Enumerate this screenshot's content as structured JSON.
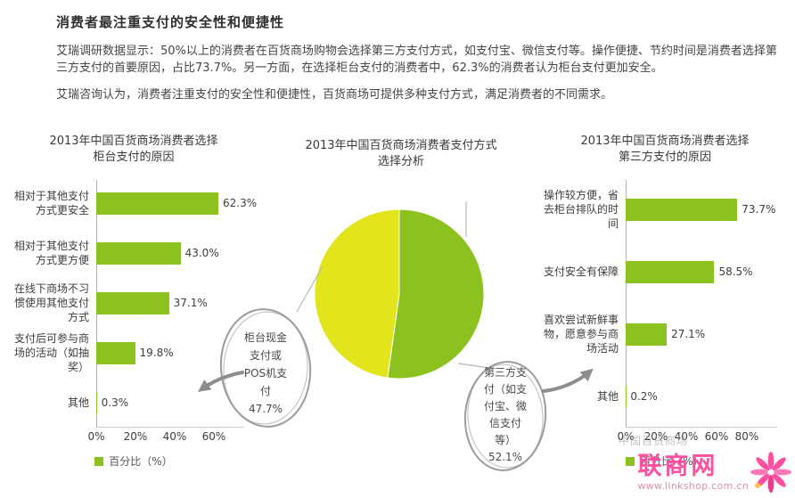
{
  "header": {
    "title": "消费者最注重支付的安全性和便捷性",
    "paragraph1": "艾瑞调研数据显示：50%以上的消费者在百货商场购物会选择第三方支付方式，如支付宝、微信支付等。操作便捷、节约时间是消费者选择第三方支付的首要原因，占比73.7%。另一方面，在选择柜台支付的消费者中，62.3%的消费者认为柜台支付更加安全。",
    "paragraph2": "艾瑞咨询认为，消费者注重支付的安全性和便捷性，百货商场可提供多种支付方式，满足消费者的不同需求。"
  },
  "colors": {
    "bar_green": "#8cc21f",
    "pie_green": "#8cc21f",
    "pie_yellow": "#e2e51c",
    "annotation_gray": "#9c9c9c",
    "watermark_pink": "#ff4fa0"
  },
  "chart_data": [
    {
      "id": "counter_payment_reasons",
      "type": "bar",
      "orientation": "horizontal",
      "title": "2013年中国百货商场消费者选择柜台支付的原因",
      "title_lines": [
        "2013年中国百货商场消费者选择",
        "柜台支付的原因"
      ],
      "categories": [
        "相对于其他支付方式更安全",
        "相对于其他支付方式更方便",
        "在线下商场不习惯使用其他支付方式",
        "支付后可参与商场的活动（如抽奖）",
        "其他"
      ],
      "values": [
        62.3,
        43.0,
        37.1,
        19.8,
        0.3
      ],
      "value_labels": [
        "62.3%",
        "43.0%",
        "37.1%",
        "19.8%",
        "0.3%"
      ],
      "x_ticks": [
        "0%",
        "20%",
        "40%",
        "60%"
      ],
      "x_tick_values": [
        0,
        20,
        40,
        60
      ],
      "xlim": [
        0,
        66
      ],
      "grid": false,
      "legend": "百分比（%）",
      "legend_position": "bottom"
    },
    {
      "id": "payment_method_share",
      "type": "pie",
      "title": "2013年中国百货商场消费者支付方式选择分析",
      "title_lines": [
        "2013年中国百货商场消费者支付方式",
        "选择分析"
      ],
      "slices": [
        {
          "label": "第三方支付（如支付宝、微信支付等）",
          "value": 52.1,
          "value_label": "52.1%",
          "color_key": "pie_green",
          "callout_side": "right",
          "callout_lines": [
            "第三方支",
            "付（如支",
            "付宝、微",
            "信支付",
            "等）",
            "52.1%"
          ]
        },
        {
          "label": "柜台现金支付或POS机支付",
          "value": 47.7,
          "value_label": "47.7%",
          "color_key": "pie_yellow",
          "callout_side": "left",
          "callout_lines": [
            "柜台现金",
            "支付或",
            "POS机支",
            "付",
            "47.7%"
          ]
        }
      ],
      "legend_position": "callouts"
    },
    {
      "id": "thirdparty_payment_reasons",
      "type": "bar",
      "orientation": "horizontal",
      "title": "2013年中国百货商场消费者选择第三方支付的原因",
      "title_lines": [
        "2013年中国百货商场消费者选择",
        "第三方支付的原因"
      ],
      "categories": [
        "操作较方便，省去柜台排队的时间",
        "支付安全有保障",
        "喜欢尝试新鲜事物，愿意参与商场活动",
        "其他"
      ],
      "values": [
        73.7,
        58.5,
        27.1,
        0.2
      ],
      "value_labels": [
        "73.7%",
        "58.5%",
        "27.1%",
        "0.2%"
      ],
      "x_ticks": [
        "0%",
        "20%",
        "40%",
        "60%",
        "80%"
      ],
      "x_tick_values": [
        0,
        20,
        40,
        60,
        80
      ],
      "xlim": [
        0,
        88
      ],
      "grid": false,
      "legend": "百分比（%）",
      "legend_position": "bottom"
    }
  ],
  "watermark": {
    "faint_text": "中国百货商场",
    "site_name": "联商网",
    "site_url": "www.linkshop.com.cn"
  }
}
